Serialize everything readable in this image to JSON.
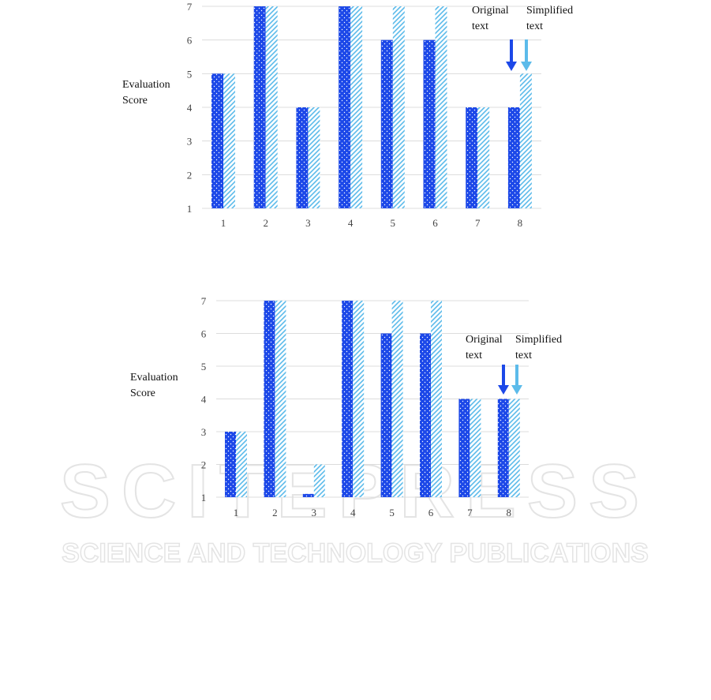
{
  "chart_data": [
    {
      "type": "bar",
      "ylabel": "Evaluation Score",
      "categories": [
        "1",
        "2",
        "3",
        "4",
        "5",
        "6",
        "7",
        "8"
      ],
      "series": [
        {
          "name": "Original text",
          "color": "#1c48e8",
          "pattern": "dots",
          "values": [
            5,
            7,
            4,
            7,
            6,
            6,
            4,
            4
          ]
        },
        {
          "name": "Simplified text",
          "color": "#5cbbea",
          "pattern": "stripes",
          "values": [
            5,
            7,
            4,
            7,
            7,
            7,
            4,
            5
          ]
        }
      ],
      "ylim": [
        1,
        7
      ],
      "yticks": [
        1,
        2,
        3,
        4,
        5,
        6,
        7
      ],
      "grid": true
    },
    {
      "type": "bar",
      "ylabel": "Evaluation Score",
      "categories": [
        "1",
        "2",
        "3",
        "4",
        "5",
        "6",
        "7",
        "8"
      ],
      "series": [
        {
          "name": "Original text",
          "color": "#1c48e8",
          "pattern": "dots",
          "values": [
            3,
            7,
            1.1,
            7,
            6,
            6,
            4,
            4
          ]
        },
        {
          "name": "Simplified text",
          "color": "#5cbbea",
          "pattern": "stripes",
          "values": [
            3,
            7,
            2,
            7,
            7,
            7,
            4,
            4
          ]
        }
      ],
      "ylim": [
        1,
        7
      ],
      "yticks": [
        1,
        2,
        3,
        4,
        5,
        6,
        7
      ],
      "grid": true
    }
  ],
  "watermark": {
    "title": "SCITEPRESS",
    "subtitle": "SCIENCE AND TECHNOLOGY PUBLICATIONS"
  }
}
